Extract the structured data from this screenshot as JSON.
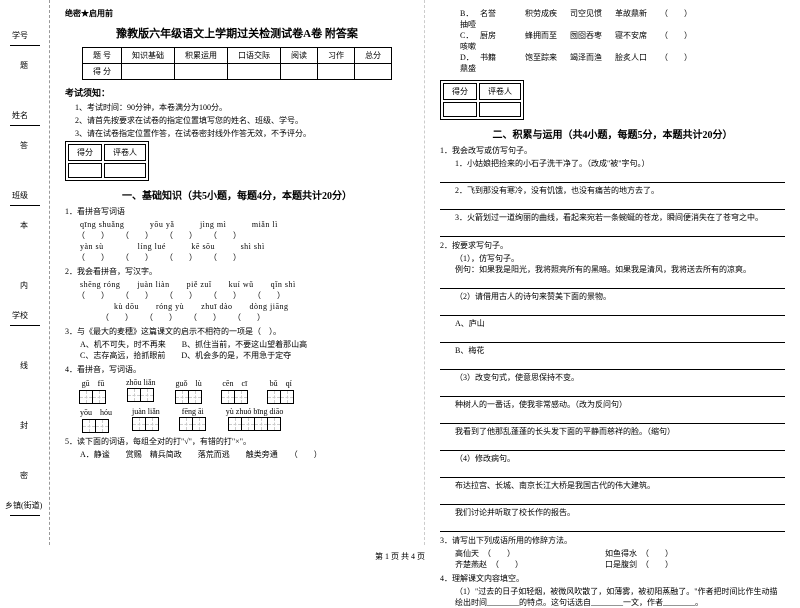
{
  "spine": {
    "labels": [
      "学号",
      "姓名",
      "班级",
      "学校",
      "乡镇(街道)"
    ],
    "chars": [
      "题",
      "答",
      "本",
      "内",
      "线",
      "封",
      "密"
    ]
  },
  "secret": "绝密★启用前",
  "title": "豫教版六年级语文上学期过关检测试卷A卷 附答案",
  "score_table": {
    "headers": [
      "题 号",
      "知识基础",
      "积累运用",
      "口语交际",
      "阅读",
      "习作",
      "总分"
    ],
    "row2": [
      "得 分",
      "",
      "",
      "",
      "",
      "",
      ""
    ]
  },
  "notice": {
    "title": "考试须知：",
    "items": [
      "1、考试时间：90分钟，本卷满分为100分。",
      "2、请首先按要求在试卷的指定位置填写您的姓名、班级、学号。",
      "3、请在试卷指定位置作答，在试卷密封线外作答无效，不予评分。"
    ]
  },
  "scorer": {
    "c1": "得分",
    "c2": "评卷人"
  },
  "section1": {
    "title": "一、基础知识（共5小题，每题4分，本题共计20分）",
    "q1": "1．看拼音写词语",
    "q1_pinyin": [
      [
        "qīng shuǎng",
        "yōu yǎ",
        "jìng mì",
        "miǎn lì"
      ],
      [
        "yàn sù",
        "líng lué",
        "kē sōu",
        "shì shì"
      ]
    ],
    "q2": "2．我会看拼音，写汉字。",
    "q2_pinyin": [
      [
        "shēng róng",
        "juàn liàn",
        "piě zuǐ",
        "kuí wǔ",
        "qǐn shì"
      ],
      [
        "kù dōu",
        "róng yù",
        "zhuī dào",
        "dòng jiāng"
      ]
    ],
    "q3": "3．与《最大的麦穗》这篇课文的启示不相符的一项是（　）。",
    "q3_opts": [
      "A、机不可失，时不再来　　B、抓住当前，不要这山望着那山高",
      "C、志存高远，拾抓眼前　　D、机会多的是，不用急于定夺"
    ],
    "q4": "4．看拼音，写词语。",
    "q4_grids": [
      [
        "gū　fū",
        "zhōu liǎn",
        "guǒ　lù",
        "cēn　cī",
        "bǔ　qí"
      ],
      [
        "yōu　hóu",
        "juàn liǎn",
        "fēng āi",
        "yù zhuó bīng diāo"
      ]
    ],
    "q4_cells": [
      [
        2,
        2,
        2,
        2,
        2
      ],
      [
        2,
        2,
        2,
        4
      ]
    ],
    "q5": "5．读下面的词语，每组全对的打\"√\"，有错的打\"×\"。",
    "q5_opt": "A．静谧　　赏赐　精兵简政　　落荒而逃　　触类旁通　　（　　）"
  },
  "col2": {
    "opts": [
      {
        "l": "B．抽噎",
        "a": "名誉",
        "b": "积劳成疾",
        "c": "司空见惯",
        "d": "革故鼎新",
        "p": "（　　）"
      },
      {
        "l": "C．咳嗽",
        "a": "厨房",
        "b": "蜂拥而至",
        "c": "囫囵吞枣",
        "d": "寝不安席",
        "p": "（　　）"
      },
      {
        "l": "D．鼎盛",
        "a": "书籍",
        "b": "饱至踪来",
        "c": "竭泽而渔",
        "d": "脍炙人口",
        "p": "（　　）"
      }
    ],
    "section2": {
      "title": "二、积累与运用（共4小题，每题5分，本题共计20分）",
      "q1": "1．我会改写或仿写句子。",
      "q1_items": [
        "1．小姑娘把捡来的小石子洗干净了。（改成\"被\"字句。）",
        "2．飞到那没有寒冷，没有饥饿，也没有痛苦的地方去了。",
        "3．火箭划过一道绚丽的曲线，看起来宛若一条蜿蜒的苍龙，瞬间便消失在了苍穹之中。"
      ],
      "q2": "2．按要求写句子。",
      "q2_items": [
        {
          "n": "（1），仿写句子。",
          "t": "例句：如果我是阳光，我将照亮所有的黑暗。如果我是清风，我将送去所有的凉爽。"
        },
        {
          "n": "（2）请借用古人的诗句来赞美下面的景物。",
          "t": ""
        },
        {
          "n": "A、庐山",
          "t": ""
        },
        {
          "n": "B、梅花",
          "t": ""
        },
        {
          "n": "（3）改变句式，使意思保持不变。",
          "t": ""
        },
        {
          "n": "种树人的一番话，使我非常感动。（改为反问句）",
          "t": ""
        },
        {
          "n": "我看到了他那乱蓬蓬的长头发下面的平静而慈祥的脸。（缩句）",
          "t": ""
        },
        {
          "n": "（4）修改病句。",
          "t": ""
        },
        {
          "n": "布达拉宫、长城、南京长江大桥是我国古代的伟大建筑。",
          "t": ""
        },
        {
          "n": "我们讨论并听取了校长作的报告。",
          "t": ""
        }
      ],
      "q3": "3．请写出下列成语所用的修辞方法。",
      "q3_items": [
        {
          "a": "高仙天　（　　）",
          "b": "如鱼得水　（　　）"
        },
        {
          "a": "齐楚燕赵　（　　）",
          "b": "口是腹剑　（　　）"
        }
      ],
      "q4": "4．理解课文内容填空。",
      "q4_text": "（1）\"过去的日子如轻烟，被微风吹散了，如薄雾，被初阳蒸融了。\"作者把时间比作生动描绘出时间________的特点。这句话选自________一文，作者________。"
    }
  },
  "footer": "第 1 页 共 4 页"
}
